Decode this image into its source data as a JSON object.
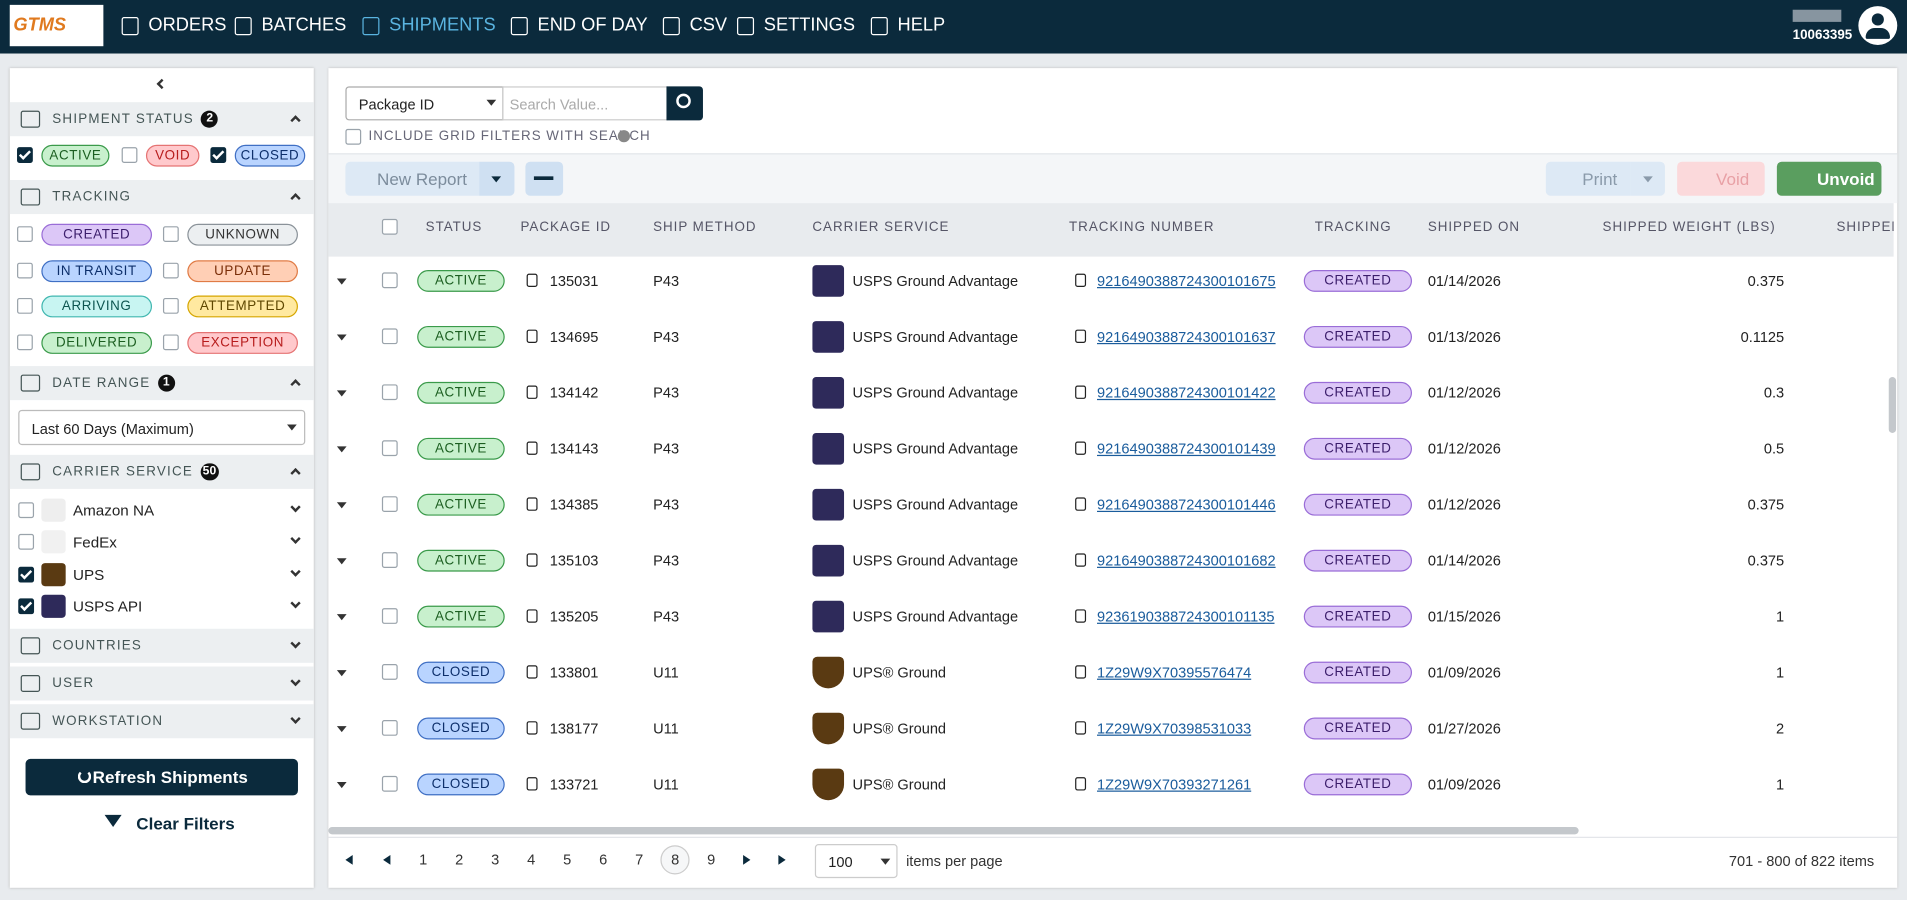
{
  "header": {
    "logo": "GTMS",
    "nav": [
      "ORDERS",
      "BATCHES",
      "SHIPMENTS",
      "END OF DAY",
      "CSV",
      "SETTINGS",
      "HELP"
    ],
    "account": "10063395"
  },
  "sidebar": {
    "shipment_status": {
      "title": "SHIPMENT STATUS",
      "count": 2,
      "options": [
        {
          "label": "ACTIVE",
          "checked": true
        },
        {
          "label": "VOID",
          "checked": false
        },
        {
          "label": "CLOSED",
          "checked": true
        }
      ]
    },
    "tracking": {
      "title": "TRACKING",
      "options": [
        {
          "label": "CREATED",
          "checked": false
        },
        {
          "label": "UNKNOWN",
          "checked": false
        },
        {
          "label": "IN TRANSIT",
          "checked": false
        },
        {
          "label": "UPDATE",
          "checked": false
        },
        {
          "label": "ARRIVING",
          "checked": false
        },
        {
          "label": "ATTEMPTED",
          "checked": false
        },
        {
          "label": "DELIVERED",
          "checked": false
        },
        {
          "label": "EXCEPTION",
          "checked": false
        }
      ]
    },
    "date_range": {
      "title": "DATE RANGE",
      "count": 1,
      "value": "Last 60 Days (Maximum)"
    },
    "carrier_service": {
      "title": "CARRIER SERVICE",
      "count": 50,
      "options": [
        {
          "label": "Amazon NA",
          "checked": false
        },
        {
          "label": "FedEx",
          "checked": false
        },
        {
          "label": "UPS",
          "checked": true
        },
        {
          "label": "USPS API",
          "checked": true
        }
      ]
    },
    "collapsed": [
      "COUNTRIES",
      "USER",
      "WORKSTATION"
    ],
    "buttons": [
      "Refresh Shipments",
      "Clear Filters"
    ]
  },
  "search": {
    "field": "Package ID",
    "placeholder": "Search Value...",
    "option": "INCLUDE GRID FILTERS WITH SEARCH"
  },
  "toolbar": {
    "new_report": "New Report",
    "print": "Print",
    "void": "Void",
    "unvoid": "Unvoid"
  },
  "table": {
    "columns": [
      "STATUS",
      "PACKAGE ID",
      "SHIP METHOD",
      "CARRIER SERVICE",
      "TRACKING NUMBER",
      "TRACKING",
      "SHIPPED ON",
      "SHIPPED WEIGHT (LBS)",
      "SHIPPED"
    ],
    "rows": [
      [
        "ACTIVE",
        "135031",
        "P43",
        "USPS Ground Advantage",
        "9216490388724300101675",
        "CREATED",
        "01/14/2026",
        0.375
      ],
      [
        "ACTIVE",
        "134695",
        "P43",
        "USPS Ground Advantage",
        "9216490388724300101637",
        "CREATED",
        "01/13/2026",
        0.1125
      ],
      [
        "ACTIVE",
        "134142",
        "P43",
        "USPS Ground Advantage",
        "9216490388724300101422",
        "CREATED",
        "01/12/2026",
        0.3
      ],
      [
        "ACTIVE",
        "134143",
        "P43",
        "USPS Ground Advantage",
        "9216490388724300101439",
        "CREATED",
        "01/12/2026",
        0.5
      ],
      [
        "ACTIVE",
        "134385",
        "P43",
        "USPS Ground Advantage",
        "9216490388724300101446",
        "CREATED",
        "01/12/2026",
        0.375
      ],
      [
        "ACTIVE",
        "135103",
        "P43",
        "USPS Ground Advantage",
        "9216490388724300101682",
        "CREATED",
        "01/14/2026",
        0.375
      ],
      [
        "ACTIVE",
        "135205",
        "P43",
        "USPS Ground Advantage",
        "9236190388724300101135",
        "CREATED",
        "01/15/2026",
        1
      ],
      [
        "CLOSED",
        "133801",
        "U11",
        "UPS® Ground",
        "1Z29W9X70395576474",
        "CREATED",
        "01/09/2026",
        1
      ],
      [
        "CLOSED",
        "138177",
        "U11",
        "UPS® Ground",
        "1Z29W9X70398531033",
        "CREATED",
        "01/27/2026",
        2
      ],
      [
        "CLOSED",
        "133721",
        "U11",
        "UPS® Ground",
        "1Z29W9X70393271261",
        "CREATED",
        "01/09/2026",
        1
      ]
    ]
  },
  "pagination": {
    "pages": [
      1,
      2,
      3,
      4,
      5,
      6,
      7,
      8,
      9
    ],
    "current": 8,
    "page_size": 100,
    "page_size_label": "items per page",
    "summary": "701 - 800 of 822 items"
  }
}
